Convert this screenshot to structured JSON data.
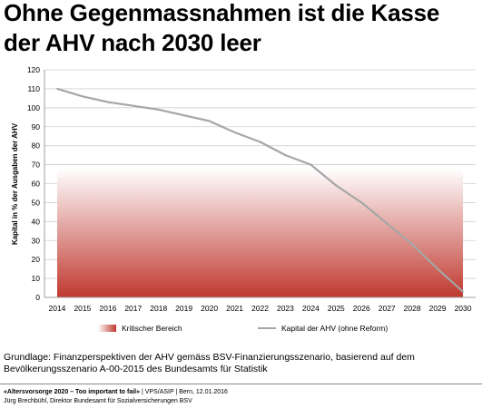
{
  "title": "Ohne Gegenmassnahmen ist die Kasse der AHV nach 2030 leer",
  "title_lines": [
    "Ohne Gegenmassnahmen ist die Kasse",
    "der AHV nach 2030 leer"
  ],
  "chart_data": {
    "type": "line",
    "ylabel": "Kapital in % der Ausgaben der AHV",
    "ylim": [
      0,
      120
    ],
    "yticks": [
      "0",
      "10",
      "20",
      "30",
      "40",
      "50",
      "60",
      "70",
      "80",
      "90",
      "100",
      "110",
      "120"
    ],
    "x": [
      "2014",
      "2015",
      "2016",
      "2017",
      "2018",
      "2019",
      "2020",
      "2021",
      "2022",
      "2023",
      "2024",
      "2025",
      "2026",
      "2027",
      "2028",
      "2029",
      "2030"
    ],
    "series": [
      {
        "name": "Kapital der AHV (ohne Reform)",
        "type": "line",
        "color": "#a6a6a6",
        "values": [
          110,
          106,
          103,
          101,
          99,
          96,
          93,
          87,
          82,
          75,
          70,
          59,
          50,
          39,
          28,
          15,
          3
        ]
      }
    ],
    "areas": [
      {
        "name": "Kritischer Bereich",
        "y_from": 0,
        "y_to": 68,
        "color_top": "#ffffff",
        "color_bottom": "#c0392f"
      }
    ],
    "grid": true,
    "legend_position": "bottom"
  },
  "caption": "Grundlage: Finanzperspektiven der AHV gemäss BSV-Finanzierungsszenario, basierend auf dem Bevölkerungsszenario A-00-2015 des Bundesamts für Statistik",
  "footer": {
    "campaign": "«Altersvorsorge 2020 – Too important to fail»",
    "separator": " | ",
    "org_info": "VPS/ASIP | Bern, 12.01.2016",
    "author": "Jürg Brechbühl, Direktor Bundesamt für Sozialversicherungen BSV"
  }
}
